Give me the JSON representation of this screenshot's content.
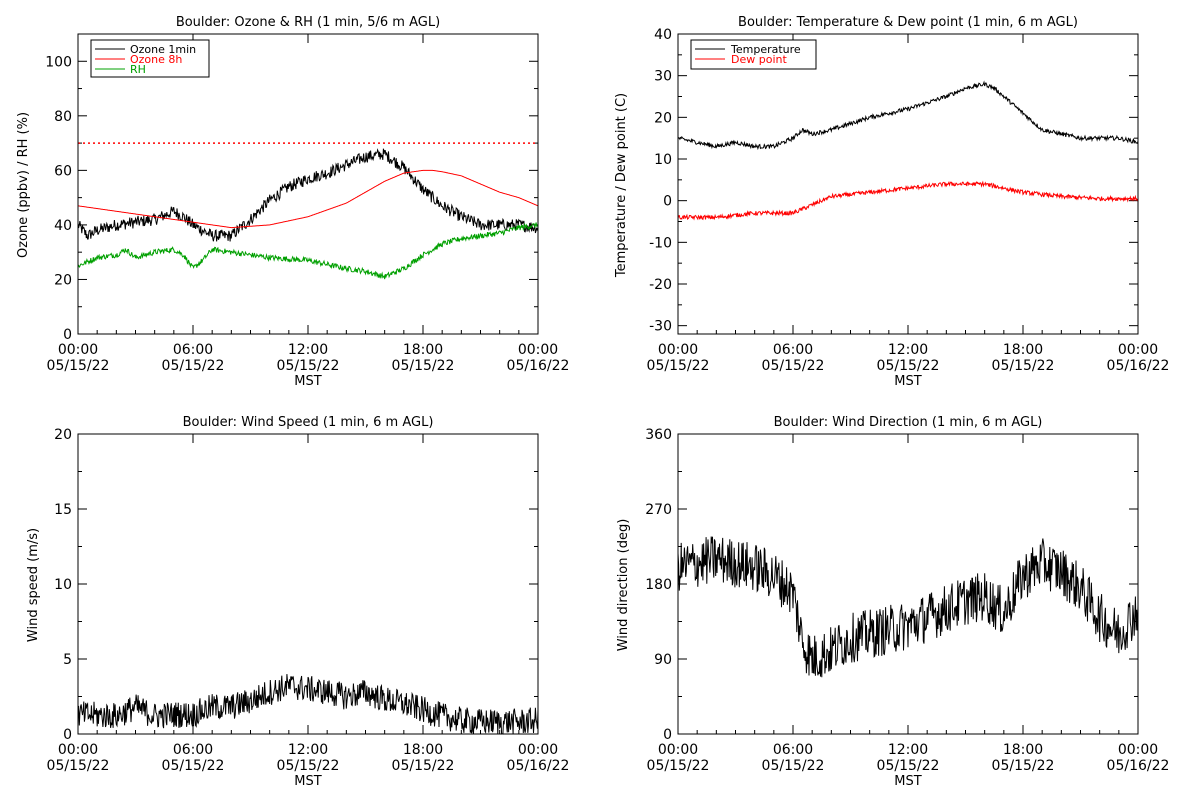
{
  "chart_data": [
    {
      "id": "ozone",
      "type": "line",
      "title": "Boulder: Ozone & RH (1 min, 5/6 m AGL)",
      "ylabel": "Ozone (ppbv) / RH (%)",
      "xlabel": "MST",
      "xlim": [
        0,
        24
      ],
      "ylim": [
        0,
        110
      ],
      "yticks": [
        0,
        20,
        40,
        60,
        80,
        100
      ],
      "xticks": [
        {
          "x": 0,
          "time": "00:00",
          "date": "05/15/22"
        },
        {
          "x": 6,
          "time": "06:00",
          "date": "05/15/22"
        },
        {
          "x": 12,
          "time": "12:00",
          "date": "05/15/22"
        },
        {
          "x": 18,
          "time": "18:00",
          "date": "05/15/22"
        },
        {
          "x": 24,
          "time": "00:00",
          "date": "05/16/22"
        }
      ],
      "legend": "top-left",
      "reference_line": {
        "y": 70,
        "color": "#ff0000",
        "style": "dotted"
      },
      "series": [
        {
          "name": "Ozone 1min",
          "color": "#000000",
          "noise": 2.2,
          "x": [
            0,
            0.5,
            1,
            2,
            3,
            4,
            5,
            5.5,
            6,
            7,
            8,
            9,
            10,
            11,
            12,
            13,
            14,
            15,
            16,
            17,
            18,
            19,
            20,
            21,
            22,
            23,
            24
          ],
          "y": [
            40,
            36,
            38,
            40,
            41,
            42,
            45,
            43,
            40,
            36,
            36,
            42,
            49,
            54,
            57,
            59,
            62,
            65,
            66,
            61,
            53,
            47,
            43,
            40,
            40,
            40,
            39
          ]
        },
        {
          "name": "Ozone 8h",
          "color": "#ff0000",
          "noise": 0,
          "x": [
            0,
            2,
            4,
            6,
            8,
            10,
            12,
            14,
            15,
            16,
            17,
            18,
            18.5,
            19,
            20,
            21,
            22,
            23,
            24
          ],
          "y": [
            47,
            45,
            43,
            41,
            39,
            40,
            43,
            48,
            52,
            56,
            59,
            60,
            60,
            59.5,
            58,
            55,
            52,
            50,
            47
          ]
        },
        {
          "name": "RH",
          "color": "#00a000",
          "noise": 1.0,
          "x": [
            0,
            1,
            2,
            2.5,
            3,
            4,
            5,
            5.5,
            6,
            6.5,
            7,
            8,
            10,
            12,
            14,
            15,
            16,
            17,
            18,
            19,
            20,
            22,
            23,
            24
          ],
          "y": [
            25,
            28,
            29,
            31,
            28,
            30,
            31,
            29,
            24,
            27,
            31,
            30,
            28,
            27,
            24,
            23,
            21,
            24,
            29,
            33,
            35,
            37,
            39,
            40
          ]
        }
      ]
    },
    {
      "id": "temp",
      "type": "line",
      "title": "Boulder: Temperature & Dew point (1 min, 6 m AGL)",
      "ylabel": "Temperature / Dew point (C)",
      "xlabel": "MST",
      "xlim": [
        0,
        24
      ],
      "ylim": [
        -32,
        40
      ],
      "yticks": [
        -30,
        -20,
        -10,
        0,
        10,
        20,
        30,
        40
      ],
      "xticks": [
        {
          "x": 0,
          "time": "00:00",
          "date": "05/15/22"
        },
        {
          "x": 6,
          "time": "06:00",
          "date": "05/15/22"
        },
        {
          "x": 12,
          "time": "12:00",
          "date": "05/15/22"
        },
        {
          "x": 18,
          "time": "18:00",
          "date": "05/15/22"
        },
        {
          "x": 24,
          "time": "00:00",
          "date": "05/16/22"
        }
      ],
      "legend": "top-left",
      "series": [
        {
          "name": "Temperature",
          "color": "#000000",
          "noise": 0.5,
          "x": [
            0,
            1,
            2,
            3,
            4,
            5,
            6,
            6.5,
            7,
            8,
            10,
            12,
            14,
            15,
            16,
            16.5,
            17,
            18,
            19,
            20,
            21,
            22,
            23,
            24
          ],
          "y": [
            15,
            14,
            13,
            14,
            13,
            13,
            15,
            17,
            16,
            17,
            20,
            22,
            25,
            27,
            28,
            27,
            25,
            21,
            17,
            16,
            15,
            15,
            15,
            14
          ]
        },
        {
          "name": "Dew point",
          "color": "#ff0000",
          "noise": 0.5,
          "x": [
            0,
            2,
            4,
            5,
            6,
            6.5,
            7,
            8,
            10,
            12,
            14,
            15,
            16,
            17,
            18,
            20,
            22,
            24
          ],
          "y": [
            -4,
            -4,
            -3,
            -3,
            -3,
            -2,
            -1,
            1,
            2,
            3,
            4,
            4,
            4,
            3,
            2,
            1,
            0.5,
            0.5
          ]
        }
      ]
    },
    {
      "id": "wspd",
      "type": "line",
      "title": "Boulder: Wind Speed (1 min, 6 m AGL)",
      "ylabel": "Wind speed (m/s)",
      "xlabel": "MST",
      "xlim": [
        0,
        24
      ],
      "ylim": [
        0,
        20
      ],
      "yticks": [
        0,
        5,
        10,
        15,
        20
      ],
      "xticks": [
        {
          "x": 0,
          "time": "00:00",
          "date": "05/15/22"
        },
        {
          "x": 6,
          "time": "06:00",
          "date": "05/15/22"
        },
        {
          "x": 12,
          "time": "12:00",
          "date": "05/15/22"
        },
        {
          "x": 18,
          "time": "18:00",
          "date": "05/15/22"
        },
        {
          "x": 24,
          "time": "00:00",
          "date": "05/16/22"
        }
      ],
      "series": [
        {
          "name": "",
          "color": "#000000",
          "noise": 0.9,
          "min": 0,
          "x": [
            0,
            2,
            3,
            4,
            5,
            6,
            7,
            8,
            9,
            10,
            11,
            12,
            13,
            14,
            15,
            16,
            17,
            18,
            19,
            20,
            21,
            22,
            23,
            24
          ],
          "y": [
            1.3,
            1.2,
            1.8,
            1.2,
            1.3,
            1.3,
            1.8,
            1.8,
            2.2,
            2.8,
            3.2,
            3.0,
            2.8,
            2.5,
            2.8,
            2.3,
            2.0,
            1.6,
            1.2,
            0.9,
            0.8,
            0.8,
            0.8,
            0.9
          ]
        }
      ]
    },
    {
      "id": "wdir",
      "type": "line",
      "title": "Boulder: Wind Direction (1 min, 6 m AGL)",
      "ylabel": "Wind direction (deg)",
      "xlabel": "MST",
      "xlim": [
        0,
        24
      ],
      "ylim": [
        0,
        360
      ],
      "yticks": [
        0,
        90,
        180,
        270,
        360
      ],
      "xticks": [
        {
          "x": 0,
          "time": "00:00",
          "date": "05/15/22"
        },
        {
          "x": 6,
          "time": "06:00",
          "date": "05/15/22"
        },
        {
          "x": 12,
          "time": "12:00",
          "date": "05/15/22"
        },
        {
          "x": 18,
          "time": "18:00",
          "date": "05/15/22"
        },
        {
          "x": 24,
          "time": "00:00",
          "date": "05/16/22"
        }
      ],
      "series": [
        {
          "name": "",
          "color": "#000000",
          "noise": 30,
          "min": 0,
          "max": 360,
          "x": [
            0,
            1,
            2,
            3,
            4,
            5,
            6,
            6.5,
            7,
            8,
            9,
            10,
            11,
            12,
            13,
            14,
            15,
            16,
            17,
            18,
            19,
            20,
            21,
            22,
            23,
            24
          ],
          "y": [
            200,
            205,
            210,
            205,
            200,
            190,
            170,
            110,
            90,
            100,
            115,
            120,
            125,
            130,
            140,
            150,
            160,
            165,
            145,
            190,
            205,
            195,
            175,
            140,
            120,
            150
          ]
        }
      ]
    }
  ]
}
